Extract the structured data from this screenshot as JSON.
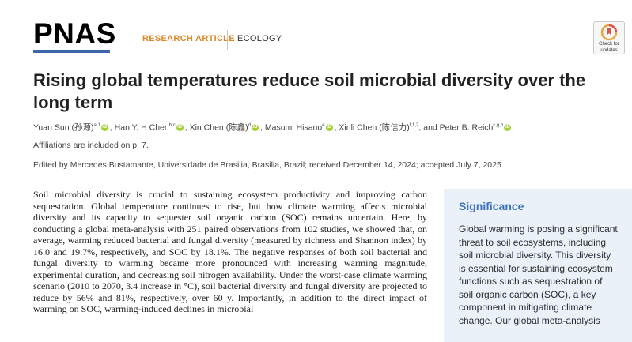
{
  "header": {
    "journal_logo": "PNAS",
    "article_type": "RESEARCH ARTICLE",
    "section": "ECOLOGY",
    "check_updates_label": [
      "Check for",
      "updates"
    ]
  },
  "title": "Rising global temperatures reduce soil microbial diversity over the long term",
  "authors": [
    {
      "name": "Yuan Sun (孙源)",
      "sup": "a,1"
    },
    {
      "name": "Han Y. H Chen",
      "sup": "b,c"
    },
    {
      "name": "Xin Chen (陈鑫)",
      "sup": "d"
    },
    {
      "name": "Masumi Hisano",
      "sup": "e"
    },
    {
      "name": "Xinli Chen (陈信力)",
      "sup": "f,1,2"
    },
    {
      "name": "Peter B. Reich",
      "sup": "c,g,h"
    }
  ],
  "author_conjunction": ", and ",
  "affiliations_note": "Affiliations are included on p. 7.",
  "edited_line": "Edited by Mercedes Bustamante, Universidade de Brasilia, Brasilia, Brazil; received December 14, 2024; accepted July 7, 2025",
  "abstract": "Soil microbial diversity is crucial to sustaining ecosystem productivity and improving carbon sequestration. Global temperature continues to rise, but how climate warming affects microbial diversity and its capacity to sequester soil organic carbon (SOC) remains uncertain. Here, by conducting a global meta-analysis with 251 paired observations from 102 studies, we showed that, on average, warming reduced bacterial and fungal diversity (measured by richness and Shannon index) by 16.0 and 19.7%, respectively, and SOC by 18.1%. The negative responses of both soil bacterial and fungal diversity to warming became more pronounced with increasing warming magnitude, experimental duration, and decreasing soil nitrogen availability. Under the worst-case climate warming scenario (2010 to 2070, 3.4 increase in °C), soil bacterial diversity and fungal diversity are projected to reduce by 56% and 81%, respectively, over 60 y. Importantly, in addition to the direct impact of warming on SOC, warming-induced declines in microbial",
  "significance": {
    "title": "Significance",
    "text": "Global warming is posing a significant threat to soil ecosystems, including soil microbial diversity. This diversity is essential for sustaining ecosystem functions such as sequestration of soil organic carbon (SOC), a key component in mitigating climate change. Our global meta-analysis"
  },
  "colors": {
    "logo_bar": "#3c67a8",
    "article_type": "#d98a2b",
    "significance_bg": "#eaf1f8",
    "significance_title": "#3c73b8",
    "orcid": "#a6ce39"
  },
  "icons": {
    "orcid": "orcid-icon",
    "updates": "check-for-updates-icon"
  }
}
